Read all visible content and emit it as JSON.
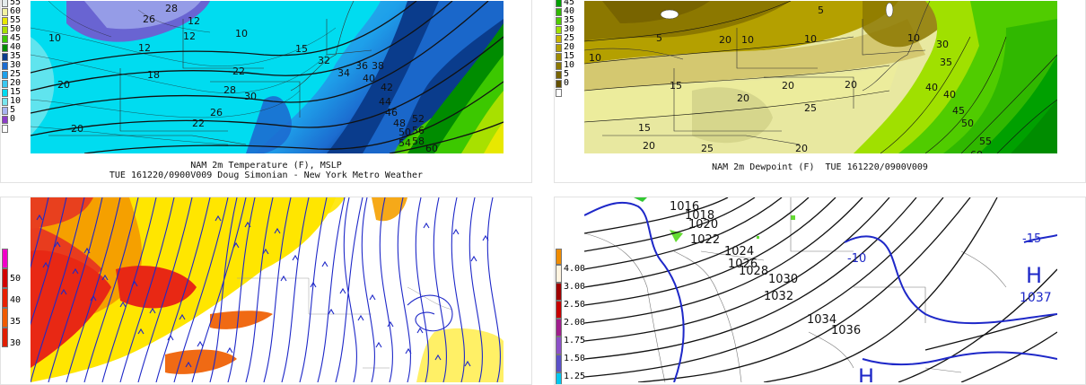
{
  "panels": {
    "temp": {
      "caption_line1": "NAM 2m Temperature (F), MSLP",
      "caption_line2": "TUE 161220/0900V009 Doug Simonian - New York Metro Weather",
      "legend": [
        {
          "label": "55",
          "color": "#e4ecec"
        },
        {
          "label": "60",
          "color": "#f2f2a0"
        },
        {
          "label": "55",
          "color": "#e8e800"
        },
        {
          "label": "50",
          "color": "#a8e000"
        },
        {
          "label": "45",
          "color": "#3cc800"
        },
        {
          "label": "40",
          "color": "#008c00"
        },
        {
          "label": "35",
          "color": "#0a3c8c"
        },
        {
          "label": "30",
          "color": "#1c6cd0"
        },
        {
          "label": "25",
          "color": "#1ea0ea"
        },
        {
          "label": "20",
          "color": "#3cc8f0"
        },
        {
          "label": "15",
          "color": "#00dcf0"
        },
        {
          "label": "10",
          "color": "#78e6ee"
        },
        {
          "label": "5",
          "color": "#a8b4f0"
        },
        {
          "label": "0",
          "color": "#8c3cc8"
        },
        {
          "label": "",
          "color": "#ffffff"
        }
      ],
      "map_labels": [
        "28",
        "26",
        "12",
        "10",
        "12",
        "22",
        "10",
        "12",
        "20",
        "15",
        "20",
        "18",
        "22",
        "28",
        "26",
        "30",
        "32",
        "34",
        "36",
        "38",
        "40",
        "42",
        "44",
        "46",
        "48",
        "50",
        "52",
        "54",
        "56",
        "58",
        "60"
      ]
    },
    "dewpoint": {
      "caption": "NAM 2m Dewpoint (F)  TUE 161220/0900V009",
      "legend": [
        {
          "label": "45",
          "color": "#00a000"
        },
        {
          "label": "40",
          "color": "#30b800"
        },
        {
          "label": "35",
          "color": "#50cc00"
        },
        {
          "label": "30",
          "color": "#a0e000"
        },
        {
          "label": "25",
          "color": "#c8b400"
        },
        {
          "label": "20",
          "color": "#b4a000"
        },
        {
          "label": "15",
          "color": "#a08c00"
        },
        {
          "label": "10",
          "color": "#8c7800"
        },
        {
          "label": "5",
          "color": "#786400"
        },
        {
          "label": "0",
          "color": "#645000"
        },
        {
          "label": "",
          "color": "#ffffff"
        }
      ],
      "map_labels": [
        "5",
        "20",
        "10",
        "10",
        "5",
        "10",
        "10",
        "15",
        "20",
        "20",
        "20",
        "25",
        "20",
        "25",
        "35",
        "40",
        "40",
        "45",
        "50",
        "55",
        "60",
        "15",
        "20",
        "30"
      ]
    },
    "wind": {
      "legend": [
        {
          "label": "",
          "color": "#f000c8"
        },
        {
          "label": "50",
          "color": "#d20000"
        },
        {
          "label": "40",
          "color": "#e82000"
        },
        {
          "label": "35",
          "color": "#f05a00"
        },
        {
          "label": "30",
          "color": "#e01e00"
        }
      ]
    },
    "pressure": {
      "legend": [
        {
          "label": "",
          "color": "#f08c00"
        },
        {
          "label": "4.00",
          "color": "#fff4e0"
        },
        {
          "label": "3.00",
          "color": "#a00000"
        },
        {
          "label": "2.50",
          "color": "#c80000"
        },
        {
          "label": "2.00",
          "color": "#a01e8c"
        },
        {
          "label": "1.75",
          "color": "#8c50c8"
        },
        {
          "label": "1.50",
          "color": "#5a50c8"
        },
        {
          "label": "1.25",
          "color": "#00c8f0"
        }
      ],
      "isobar_labels": [
        "1016",
        "1018",
        "1020",
        "1022",
        "1024",
        "1026",
        "1028",
        "1030",
        "1032",
        "1034",
        "1036"
      ],
      "thickness_labels": [
        "-15",
        "-10"
      ],
      "high_symbol": "H",
      "high_value": "1037",
      "high_symbol_2": "H"
    }
  }
}
